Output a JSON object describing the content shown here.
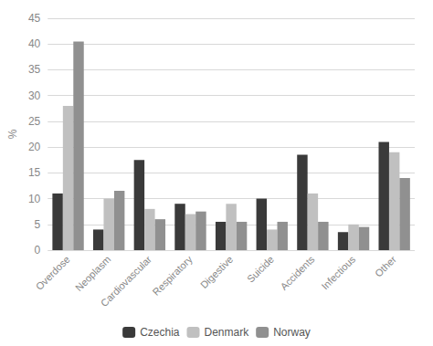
{
  "chart_data": {
    "type": "bar",
    "categories": [
      "Overdose",
      "Neoplasm",
      "Cardiovascular",
      "Respiratory",
      "Digestive",
      "Suicide",
      "Accidents",
      "Infectious",
      "Other"
    ],
    "series": [
      {
        "name": "Czechia",
        "color": "#3a3a3a",
        "values": [
          11,
          4,
          17.5,
          9,
          5.5,
          10,
          18.5,
          3.5,
          21
        ]
      },
      {
        "name": "Denmark",
        "color": "#c0c0c0",
        "values": [
          28,
          10,
          8,
          7,
          9,
          4,
          11,
          5,
          19
        ]
      },
      {
        "name": "Norway",
        "color": "#909090",
        "values": [
          40.5,
          11.5,
          6,
          7.5,
          5.5,
          5.5,
          5.5,
          4.5,
          14
        ]
      }
    ],
    "ylabel": "%",
    "ylim": [
      0,
      45
    ],
    "yticks": [
      0,
      5,
      10,
      15,
      20,
      25,
      30,
      35,
      40,
      45
    ],
    "grid": true,
    "legend": "bottom"
  }
}
